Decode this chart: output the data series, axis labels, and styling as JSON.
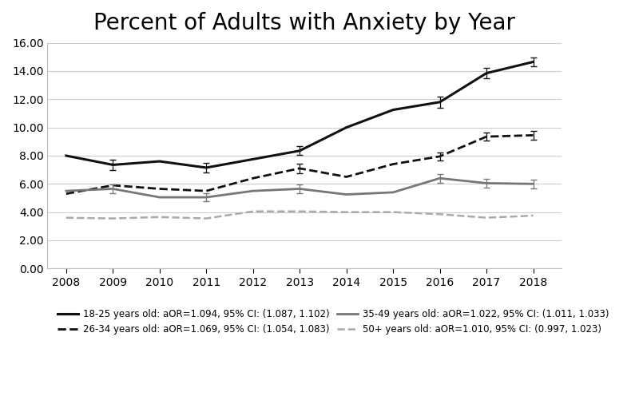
{
  "title": "Percent of Adults with Anxiety by Year",
  "years": [
    2008,
    2009,
    2010,
    2011,
    2012,
    2013,
    2014,
    2015,
    2016,
    2017,
    2018
  ],
  "series": {
    "18-25": {
      "values": [
        8.0,
        7.35,
        7.6,
        7.15,
        7.75,
        8.35,
        10.0,
        11.25,
        11.8,
        13.85,
        14.65
      ],
      "color": "#111111",
      "linestyle": "solid",
      "linewidth": 2.2,
      "label": "18-25 years old: aOR=1.094, 95% CI: (1.087, 1.102)"
    },
    "26-34": {
      "values": [
        5.3,
        5.9,
        5.65,
        5.5,
        6.4,
        7.1,
        6.5,
        7.4,
        7.95,
        9.35,
        9.45
      ],
      "color": "#111111",
      "linestyle": "dashed",
      "linewidth": 2.0,
      "label": "26-34 years old: aOR=1.069, 95% CI: (1.054, 1.083)"
    },
    "35-49": {
      "values": [
        5.5,
        5.65,
        5.05,
        5.05,
        5.5,
        5.65,
        5.25,
        5.4,
        6.4,
        6.05,
        6.0
      ],
      "color": "#777777",
      "linestyle": "solid",
      "linewidth": 2.0,
      "label": "35-49 years old: aOR=1.022, 95% CI: (1.011, 1.033)"
    },
    "50+": {
      "values": [
        3.6,
        3.55,
        3.65,
        3.55,
        4.05,
        4.05,
        4.0,
        4.0,
        3.85,
        3.6,
        3.75
      ],
      "color": "#aaaaaa",
      "linestyle": "dashed",
      "linewidth": 1.8,
      "label": "50+ years old: aOR=1.010, 95% CI: (0.997, 1.023)"
    }
  },
  "error_bars": {
    "18-25": {
      "x": [
        2009,
        2011,
        2013,
        2016,
        2017,
        2018
      ],
      "y": [
        7.35,
        7.15,
        8.35,
        11.8,
        13.85,
        14.65
      ],
      "yerr": [
        0.35,
        0.35,
        0.3,
        0.4,
        0.35,
        0.3
      ]
    },
    "26-34": {
      "x": [
        2013,
        2016,
        2017,
        2018
      ],
      "y": [
        7.1,
        7.95,
        9.35,
        9.45
      ],
      "yerr": [
        0.35,
        0.3,
        0.3,
        0.3
      ]
    },
    "35-49": {
      "x": [
        2009,
        2011,
        2013,
        2016,
        2017,
        2018
      ],
      "y": [
        5.65,
        5.05,
        5.65,
        6.4,
        6.05,
        6.0
      ],
      "yerr": [
        0.3,
        0.3,
        0.3,
        0.3,
        0.3,
        0.3
      ]
    },
    "50+": {
      "x": [],
      "y": [],
      "yerr": []
    }
  },
  "xlim": [
    2007.6,
    2018.6
  ],
  "ylim": [
    0.0,
    16.0
  ],
  "yticks": [
    0.0,
    2.0,
    4.0,
    6.0,
    8.0,
    10.0,
    12.0,
    14.0,
    16.0
  ],
  "xticks": [
    2008,
    2009,
    2010,
    2011,
    2012,
    2013,
    2014,
    2015,
    2016,
    2017,
    2018
  ],
  "background_color": "#ffffff",
  "grid_color": "#cccccc",
  "title_fontsize": 20,
  "tick_fontsize": 10,
  "legend_fontsize": 8.5
}
